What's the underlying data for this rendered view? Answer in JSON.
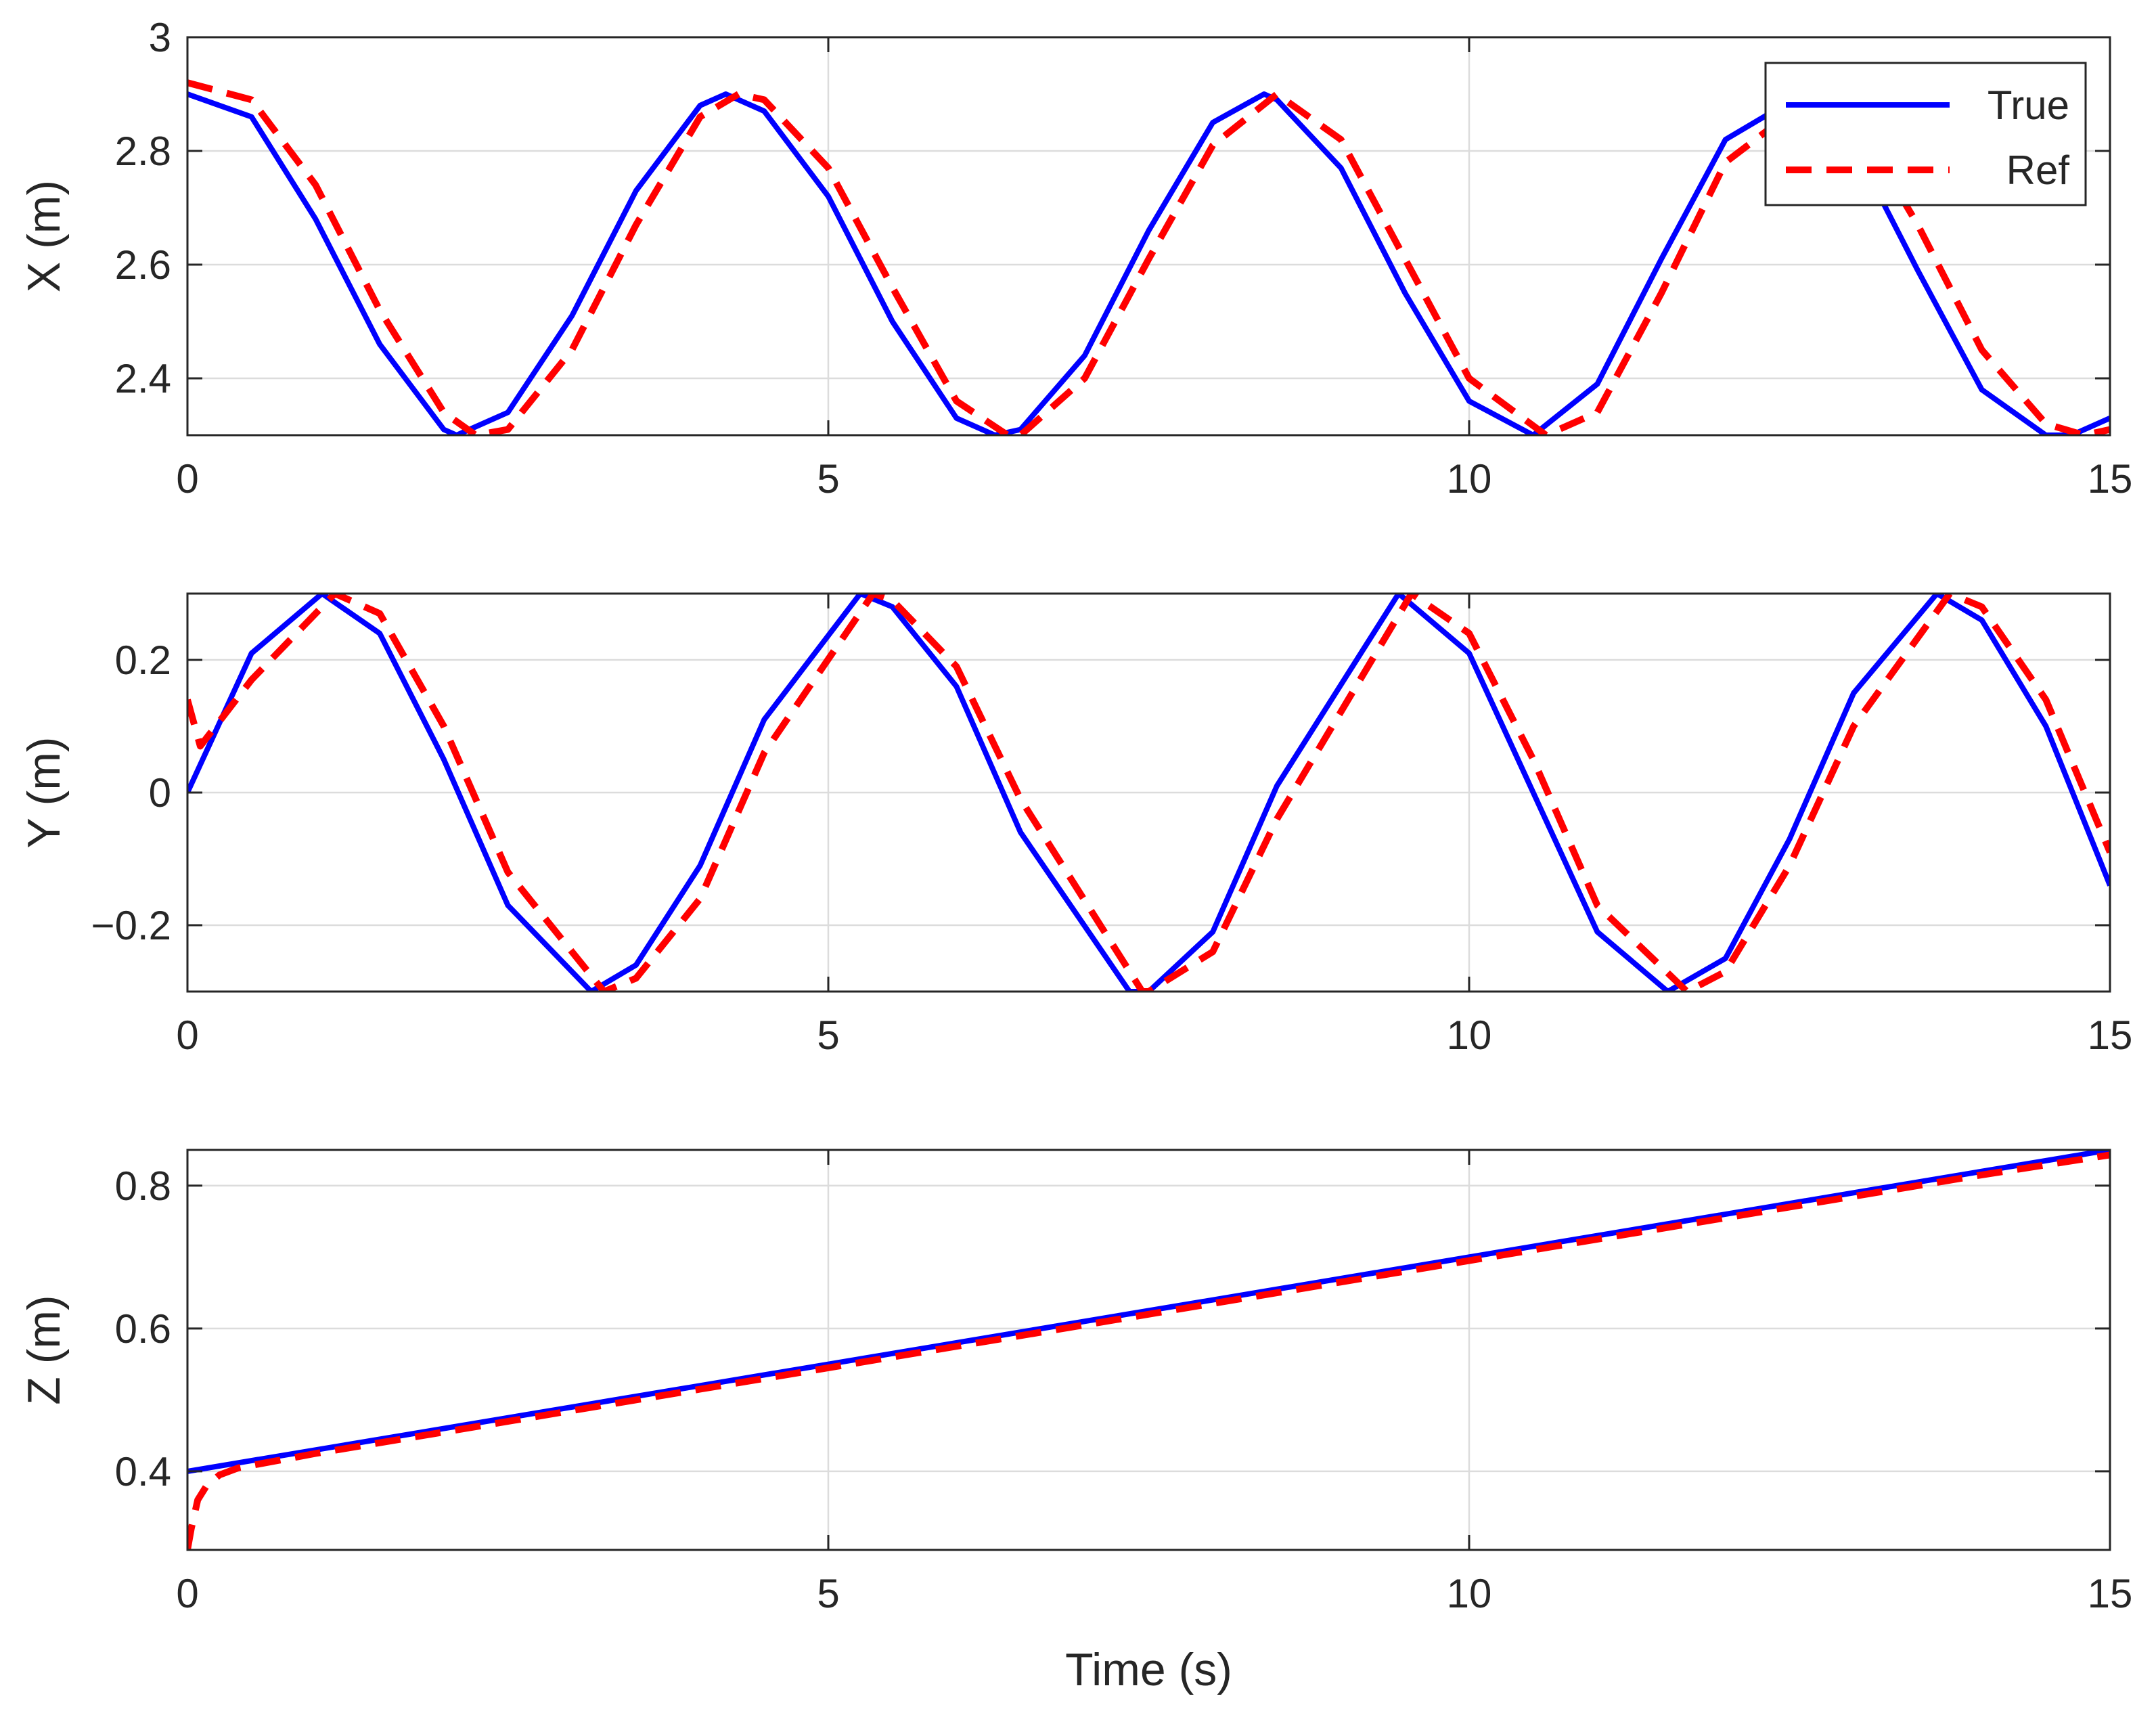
{
  "colors": {
    "true_series": "#0000ff",
    "ref_series": "#ff0000",
    "grid": "#dcdcdc",
    "axes": "#262626"
  },
  "chart_data": [
    {
      "type": "line",
      "ylabel": "X (m)",
      "xlabel": "",
      "xlim": [
        0,
        15
      ],
      "ylim": [
        2.3,
        3.0
      ],
      "xticks": [
        0,
        5,
        10,
        15
      ],
      "yticks": [
        2.4,
        2.6,
        2.8,
        3.0
      ],
      "yticklabels": [
        "2.4",
        "2.6",
        "2.8",
        "3"
      ],
      "xticklabels": [
        "0",
        "5",
        "10",
        "15"
      ],
      "grid": true,
      "legend": {
        "placement": "top-right",
        "entries": [
          "True",
          "Ref"
        ]
      },
      "series": [
        {
          "name": "True",
          "style": "solid",
          "color": "#0000ff",
          "x": [
            0,
            0.5,
            1,
            1.5,
            2,
            2.1,
            2.5,
            3,
            3.5,
            4,
            4.2,
            4.5,
            5,
            5.5,
            6,
            6.3,
            6.5,
            7,
            7.5,
            8,
            8.4,
            8.5,
            9,
            9.5,
            10,
            10.5,
            11,
            11.5,
            12,
            12.6,
            13,
            13.5,
            14,
            14.5,
            14.7,
            15
          ],
          "y": [
            2.9,
            2.86,
            2.68,
            2.46,
            2.31,
            2.3,
            2.34,
            2.51,
            2.73,
            2.88,
            2.9,
            2.87,
            2.72,
            2.5,
            2.33,
            2.3,
            2.31,
            2.44,
            2.66,
            2.85,
            2.9,
            2.89,
            2.77,
            2.55,
            2.36,
            2.3,
            2.39,
            2.61,
            2.82,
            2.9,
            2.81,
            2.59,
            2.38,
            2.3,
            2.3,
            2.33
          ]
        },
        {
          "name": "Ref",
          "style": "dashed",
          "color": "#ff0000",
          "x": [
            0,
            0.5,
            1,
            1.5,
            2,
            2.25,
            2.5,
            3,
            3.5,
            4,
            4.3,
            4.5,
            5,
            5.5,
            6,
            6.4,
            6.5,
            7,
            7.5,
            8,
            8.5,
            9,
            9.5,
            10,
            10.6,
            11,
            11.5,
            12,
            12.7,
            13,
            13.5,
            14,
            14.5,
            14.8,
            15
          ],
          "y": [
            2.92,
            2.89,
            2.74,
            2.52,
            2.34,
            2.3,
            2.31,
            2.45,
            2.67,
            2.86,
            2.9,
            2.89,
            2.77,
            2.56,
            2.36,
            2.3,
            2.3,
            2.4,
            2.61,
            2.81,
            2.9,
            2.82,
            2.61,
            2.4,
            2.3,
            2.34,
            2.55,
            2.78,
            2.9,
            2.86,
            2.67,
            2.45,
            2.32,
            2.3,
            2.31
          ]
        }
      ]
    },
    {
      "type": "line",
      "ylabel": "Y (m)",
      "xlabel": "",
      "xlim": [
        0,
        15
      ],
      "ylim": [
        -0.3,
        0.3
      ],
      "xticks": [
        0,
        5,
        10,
        15
      ],
      "yticks": [
        -0.2,
        0,
        0.2
      ],
      "yticklabels": [
        "−0.2",
        "0",
        "0.2"
      ],
      "xticklabels": [
        "0",
        "5",
        "10",
        "15"
      ],
      "grid": true,
      "series": [
        {
          "name": "True",
          "style": "solid",
          "color": "#0000ff",
          "x": [
            0,
            0.5,
            1.05,
            1.5,
            2,
            2.5,
            3.15,
            3.5,
            4,
            4.5,
            5.25,
            5.5,
            6,
            6.5,
            7.35,
            7.5,
            8,
            8.5,
            9.45,
            10,
            10.5,
            11,
            11.55,
            12,
            12.5,
            13,
            13.65,
            14,
            14.5,
            15
          ],
          "y": [
            0.0,
            0.21,
            0.3,
            0.24,
            0.05,
            -0.17,
            -0.3,
            -0.26,
            -0.11,
            0.11,
            0.3,
            0.28,
            0.16,
            -0.06,
            -0.3,
            -0.3,
            -0.21,
            0.01,
            0.3,
            0.21,
            0.0,
            -0.21,
            -0.3,
            -0.25,
            -0.07,
            0.15,
            0.3,
            0.26,
            0.1,
            -0.14
          ]
        },
        {
          "name": "Ref",
          "style": "dashed",
          "color": "#ff0000",
          "x": [
            0,
            0.1,
            0.5,
            1.15,
            1.5,
            2,
            2.5,
            3.25,
            3.5,
            4,
            4.5,
            5.35,
            5.5,
            6,
            6.5,
            7.45,
            7.5,
            8,
            8.5,
            9.55,
            10,
            10.5,
            11,
            11.7,
            12,
            12.5,
            13,
            13.75,
            14,
            14.5,
            15
          ],
          "y": [
            0.14,
            0.07,
            0.17,
            0.3,
            0.27,
            0.1,
            -0.12,
            -0.3,
            -0.28,
            -0.16,
            0.06,
            0.3,
            0.29,
            0.19,
            -0.01,
            -0.3,
            -0.3,
            -0.24,
            -0.04,
            0.3,
            0.24,
            0.05,
            -0.17,
            -0.3,
            -0.27,
            -0.11,
            0.1,
            0.3,
            0.28,
            0.14,
            -0.09
          ]
        }
      ]
    },
    {
      "type": "line",
      "ylabel": "Z (m)",
      "xlabel": "Time (s)",
      "xlim": [
        0,
        15
      ],
      "ylim": [
        0.29,
        0.85
      ],
      "xticks": [
        0,
        5,
        10,
        15
      ],
      "yticks": [
        0.4,
        0.6,
        0.8
      ],
      "yticklabels": [
        "0.4",
        "0.6",
        "0.8"
      ],
      "xticklabels": [
        "0",
        "5",
        "10",
        "15"
      ],
      "grid": true,
      "series": [
        {
          "name": "True",
          "style": "solid",
          "color": "#0000ff",
          "x": [
            0,
            15
          ],
          "y": [
            0.4,
            0.85
          ]
        },
        {
          "name": "Ref",
          "style": "dashed",
          "color": "#ff0000",
          "x": [
            0,
            0.03,
            0.08,
            0.15,
            0.25,
            0.4,
            1,
            2,
            3,
            4,
            5,
            6,
            7,
            8,
            9,
            10,
            11,
            12,
            13,
            14,
            15
          ],
          "y": [
            0.29,
            0.32,
            0.36,
            0.38,
            0.395,
            0.405,
            0.425,
            0.455,
            0.485,
            0.515,
            0.545,
            0.575,
            0.605,
            0.635,
            0.665,
            0.695,
            0.725,
            0.755,
            0.785,
            0.815,
            0.843
          ]
        }
      ]
    }
  ]
}
